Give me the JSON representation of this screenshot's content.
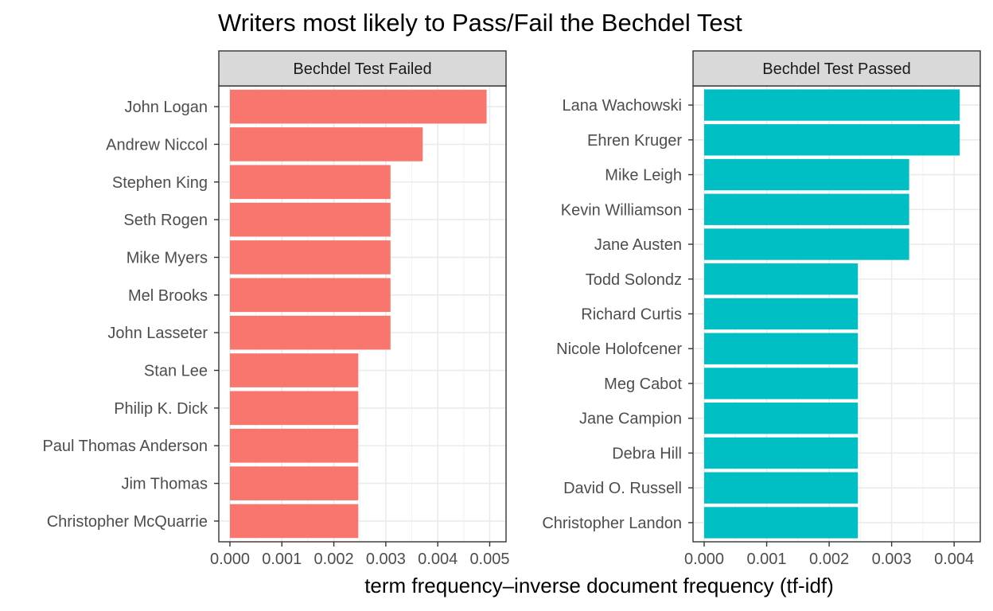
{
  "chart_data": {
    "type": "bar",
    "orientation": "horizontal",
    "title": "Writers most likely to Pass/Fail the Bechdel Test",
    "xlabel": "term frequency–inverse document frequency (tf-idf)",
    "ylabel": "",
    "grid": true,
    "legend": "none",
    "facets": [
      {
        "strip": "Bechdel Test Failed",
        "color": "#F8766D",
        "xlim": [
          0,
          0.0051
        ],
        "xticks": [
          "0.000",
          "0.001",
          "0.002",
          "0.003",
          "0.004",
          "0.005"
        ],
        "categories": [
          "John Logan",
          "Andrew Niccol",
          "Stephen King",
          "Seth Rogen",
          "Mike Myers",
          "Mel Brooks",
          "John Lasseter",
          "Stan Lee",
          "Philip K. Dick",
          "Paul Thomas Anderson",
          "Jim Thomas",
          "Christopher McQuarrie"
        ],
        "values": [
          0.00494,
          0.00371,
          0.00309,
          0.00309,
          0.00309,
          0.00309,
          0.00309,
          0.00247,
          0.00247,
          0.00247,
          0.00247,
          0.00247
        ]
      },
      {
        "strip": "Bechdel Test Passed",
        "color": "#00BFC4",
        "xlim": [
          0,
          0.00424
        ],
        "xticks": [
          "0.000",
          "0.001",
          "0.002",
          "0.003",
          "0.004"
        ],
        "categories": [
          "Lana Wachowski",
          "Ehren Kruger",
          "Mike Leigh",
          "Kevin Williamson",
          "Jane Austen",
          "Todd Solondz",
          "Richard Curtis",
          "Nicole Holofcener",
          "Meg Cabot",
          "Jane Campion",
          "Debra Hill",
          "David O. Russell",
          "Christopher Landon"
        ],
        "values": [
          0.00409,
          0.00409,
          0.00328,
          0.00328,
          0.00328,
          0.00246,
          0.00246,
          0.00246,
          0.00246,
          0.00246,
          0.00246,
          0.00246,
          0.00246
        ]
      }
    ]
  }
}
